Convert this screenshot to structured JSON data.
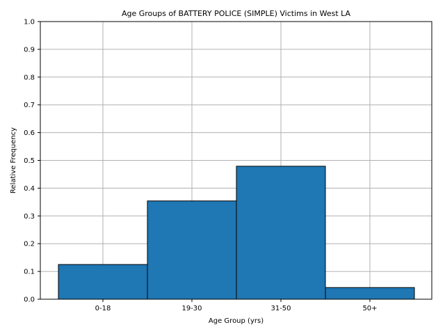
{
  "chart_data": {
    "type": "bar",
    "title": "Age Groups of BATTERY POLICE (SIMPLE) Victims in West LA",
    "xlabel": "Age Group (yrs)",
    "ylabel": "Relative Frequency",
    "categories": [
      "0-18",
      "19-30",
      "31-50",
      "50+"
    ],
    "values": [
      0.125,
      0.354,
      0.479,
      0.042
    ],
    "ylim": [
      0,
      1.0
    ],
    "yticks": [
      "0.0",
      "0.1",
      "0.2",
      "0.3",
      "0.4",
      "0.5",
      "0.6",
      "0.7",
      "0.8",
      "0.9",
      "1.0"
    ],
    "grid": true,
    "colors": {
      "bar": "#1f77b4",
      "edge": "#000000"
    }
  }
}
